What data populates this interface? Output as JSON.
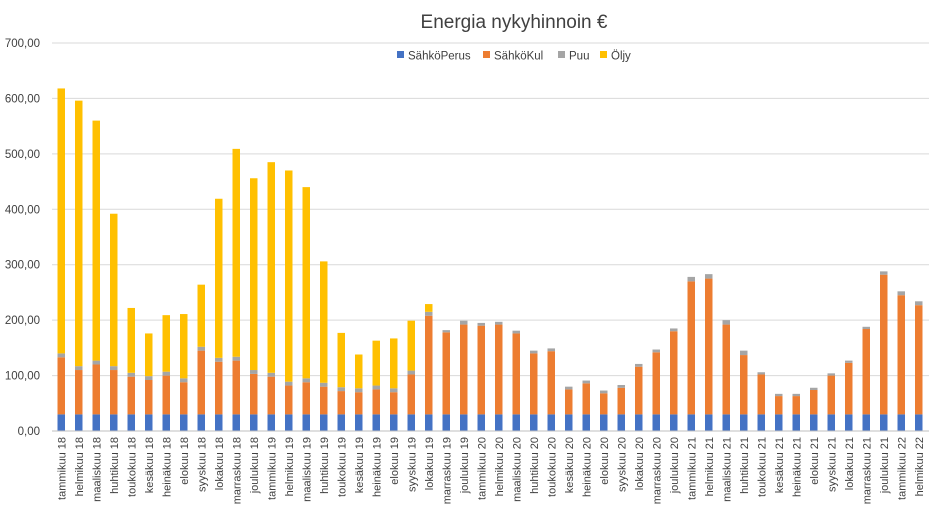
{
  "chart_data": {
    "type": "bar",
    "stacked": true,
    "title": "Energia nykyhinnoin €",
    "xlabel": "",
    "ylabel": "",
    "ylim": [
      0,
      700
    ],
    "yticks": [
      "0,00",
      "100,00",
      "200,00",
      "300,00",
      "400,00",
      "500,00",
      "600,00",
      "700,00"
    ],
    "grid": true,
    "legend_position": "top",
    "categories": [
      "tammikuu 18",
      "helmikuu 18",
      "maaliskuu 18",
      "huhtikuu 18",
      "toukokuu 18",
      "kesäkuu 18",
      "heinäkuu 18",
      "elokuu 18",
      "syyskuu 18",
      "lokakuu 18",
      "marraskuu 18",
      "joulukuu 18",
      "tammikuu 19",
      "helmikuu 19",
      "maaliskuu 19",
      "huhtikuu 19",
      "toukokuu 19",
      "kesäkuu 19",
      "heinäkuu 19",
      "elokuu 19",
      "syyskuu 19",
      "lokakuu 19",
      "marraskuu 19",
      "joulukuu 19",
      "tammikuu 20",
      "helmikuu 20",
      "maaliskuu 20",
      "huhtikuu 20",
      "toukokuu 20",
      "kesäkuu 20",
      "heinäkuu 20",
      "elokuu 20",
      "syyskuu 20",
      "lokakuu 20",
      "marraskuu 20",
      "joulukuu 20",
      "tammikuu 21",
      "helmikuu 21",
      "maaliskuu 21",
      "huhtikuu 21",
      "toukokuu 21",
      "kesäkuu 21",
      "heinäkuu 21",
      "elokuu 21",
      "syyskuu 21",
      "lokakuu 21",
      "marraskuu 21",
      "joulukuu 21",
      "tammikuu 22",
      "helmikuu 22"
    ],
    "series": [
      {
        "name": "SähköPerus",
        "color": "#4472C4",
        "values": [
          30,
          30,
          30,
          30,
          30,
          30,
          30,
          30,
          30,
          30,
          30,
          30,
          30,
          30,
          30,
          30,
          30,
          30,
          30,
          30,
          30,
          30,
          30,
          30,
          30,
          30,
          30,
          30,
          30,
          30,
          30,
          30,
          30,
          30,
          30,
          30,
          30,
          30,
          30,
          30,
          30,
          30,
          30,
          30,
          30,
          30,
          30,
          30,
          30,
          30
        ]
      },
      {
        "name": "SähköKul",
        "color": "#ED7D31",
        "values": [
          103,
          80,
          90,
          80,
          68,
          62,
          70,
          58,
          115,
          95,
          97,
          73,
          68,
          52,
          58,
          50,
          42,
          40,
          45,
          40,
          72,
          178,
          148,
          162,
          160,
          162,
          146,
          110,
          114,
          45,
          56,
          38,
          48,
          86,
          112,
          150,
          240,
          245,
          162,
          107,
          72,
          33,
          33,
          44,
          70,
          93,
          154,
          252,
          215,
          197
        ]
      },
      {
        "name": "Puu",
        "color": "#A5A5A5",
        "values": [
          7,
          7,
          7,
          7,
          7,
          7,
          7,
          7,
          7,
          7,
          7,
          7,
          7,
          7,
          7,
          7,
          7,
          7,
          7,
          7,
          7,
          7,
          4,
          7,
          5,
          5,
          5,
          5,
          5,
          5,
          5,
          5,
          5,
          5,
          5,
          5,
          8,
          8,
          8,
          8,
          4,
          4,
          4,
          4,
          4,
          4,
          4,
          6,
          7,
          7
        ]
      },
      {
        "name": "Öljy",
        "color": "#FFC000",
        "values": [
          478,
          479,
          433,
          275,
          117,
          77,
          102,
          116,
          112,
          287,
          375,
          346,
          380,
          381,
          345,
          219,
          98,
          61,
          81,
          90,
          90,
          14,
          0,
          0,
          0,
          0,
          0,
          0,
          0,
          0,
          0,
          0,
          0,
          0,
          0,
          0,
          0,
          0,
          0,
          0,
          0,
          0,
          0,
          0,
          0,
          0,
          0,
          0,
          0,
          0
        ]
      }
    ]
  }
}
